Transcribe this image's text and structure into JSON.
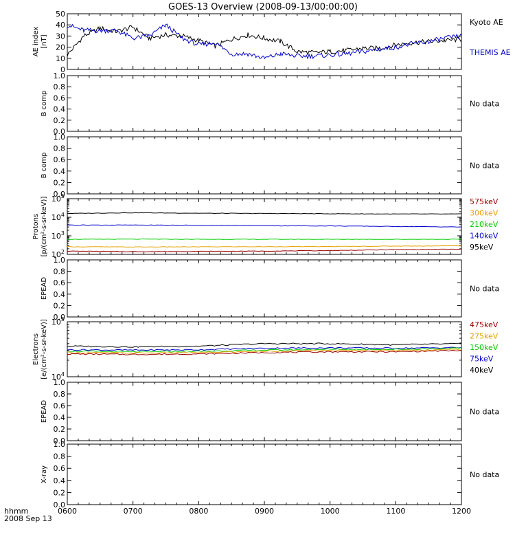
{
  "title": "GOES-13 Overview (2008-09-13/00:00:00)",
  "time_axis": {
    "ticks": [
      "0600",
      "0700",
      "0800",
      "0900",
      "1000",
      "1100",
      "1200"
    ],
    "label_top": "hhmm",
    "label_bottom": "2008 Sep 13"
  },
  "panels": [
    {
      "id": "ae",
      "ylabel": [
        "AE index",
        "[nT]"
      ],
      "yticks": [
        "0",
        "10",
        "20",
        "30",
        "40",
        "50"
      ],
      "legend": [
        {
          "text": "Kyoto AE",
          "color": "#000000"
        },
        {
          "text": "THEMIS AE",
          "color": "#0000cc"
        }
      ]
    },
    {
      "id": "bcomp1",
      "ylabel": [
        "B comp"
      ],
      "yticks": [
        "0.0",
        "0.2",
        "0.4",
        "0.6",
        "0.8",
        "1.0"
      ],
      "status": "No data"
    },
    {
      "id": "bcomp2",
      "ylabel": [
        "B comp"
      ],
      "yticks": [
        "0.0",
        "0.2",
        "0.4",
        "0.6",
        "0.8",
        "1.0"
      ],
      "status": "No data"
    },
    {
      "id": "protons",
      "ylabel": [
        "Protons",
        "[p/(cm²-s-sr-keV)]"
      ],
      "yticks": [
        {
          "base": "10",
          "exp": "2"
        },
        {
          "base": "10",
          "exp": "3"
        },
        {
          "base": "10",
          "exp": "4"
        },
        {
          "base": "10",
          "exp": "5"
        }
      ],
      "legend": [
        {
          "text": "575keV",
          "color": "#990000"
        },
        {
          "text": "300keV",
          "color": "#e6a000"
        },
        {
          "text": "210keV",
          "color": "#00cc00"
        },
        {
          "text": "140keV",
          "color": "#0000cc"
        },
        {
          "text": "95keV",
          "color": "#000000"
        }
      ]
    },
    {
      "id": "epead1",
      "ylabel": [
        "EPEAD"
      ],
      "yticks": [
        "0.0",
        "0.2",
        "0.4",
        "0.6",
        "0.8",
        "1.0"
      ],
      "status": "No data"
    },
    {
      "id": "electrons",
      "ylabel": [
        "Electrons",
        "[e/(cm²-s-sr-keV)]"
      ],
      "yticks": [
        {
          "base": "10",
          "exp": "4"
        },
        {
          "base": "10",
          "exp": "5"
        }
      ],
      "legend": [
        {
          "text": "475keV",
          "color": "#990000"
        },
        {
          "text": "275keV",
          "color": "#e6a000"
        },
        {
          "text": "150keV",
          "color": "#00cc00"
        },
        {
          "text": "75keV",
          "color": "#0000cc"
        },
        {
          "text": "40keV",
          "color": "#000000"
        }
      ]
    },
    {
      "id": "epead2",
      "ylabel": [
        "EPEAD"
      ],
      "yticks": [
        "0.0",
        "0.2",
        "0.4",
        "0.6",
        "0.8",
        "1.0"
      ],
      "status": "No data"
    },
    {
      "id": "xray",
      "ylabel": [
        "X-ray"
      ],
      "yticks": [
        "0.0",
        "0.2",
        "0.4",
        "0.6",
        "0.8",
        "1.0"
      ],
      "status": "No data"
    }
  ],
  "chart_data": [
    {
      "type": "line",
      "panel": "ae",
      "ylabel": "AE index [nT]",
      "ylim": [
        0,
        50
      ],
      "x": [
        "0600",
        "0615",
        "0630",
        "0645",
        "0700",
        "0715",
        "0730",
        "0745",
        "0800",
        "0815",
        "0830",
        "0845",
        "0900",
        "0915",
        "0930",
        "0945",
        "1000",
        "1015",
        "1030",
        "1045",
        "1100",
        "1115",
        "1130",
        "1145",
        "1200"
      ],
      "series": [
        {
          "name": "Kyoto AE",
          "color": "#000000",
          "values": [
            13,
            30,
            37,
            34,
            38,
            28,
            31,
            30,
            26,
            21,
            27,
            31,
            28,
            25,
            16,
            15,
            16,
            17,
            19,
            19,
            22,
            24,
            25,
            26,
            27
          ]
        },
        {
          "name": "THEMIS AE",
          "color": "#0000cc",
          "values": [
            40,
            35,
            35,
            35,
            28,
            30,
            40,
            28,
            22,
            24,
            14,
            14,
            10,
            14,
            12,
            12,
            13,
            14,
            16,
            18,
            20,
            23,
            25,
            28,
            30
          ]
        }
      ]
    },
    {
      "type": "line",
      "panel": "protons",
      "ylabel": "Protons [p/(cm²-s-sr-keV)]",
      "yscale": "log",
      "ylim": [
        100,
        100000
      ],
      "x": [
        "0600",
        "0700",
        "0800",
        "0900",
        "1000",
        "1100",
        "1200"
      ],
      "series": [
        {
          "name": "95keV",
          "color": "#000000",
          "values": [
            16000,
            17500,
            16500,
            16000,
            15500,
            15000,
            15000
          ]
        },
        {
          "name": "140keV",
          "color": "#0000cc",
          "values": [
            3800,
            3800,
            3700,
            3500,
            3400,
            3200,
            3000
          ]
        },
        {
          "name": "210keV",
          "color": "#00cc00",
          "values": [
            650,
            660,
            650,
            650,
            650,
            650,
            650
          ]
        },
        {
          "name": "300keV",
          "color": "#e6a000",
          "values": [
            260,
            250,
            255,
            260,
            265,
            280,
            290
          ]
        },
        {
          "name": "575keV",
          "color": "#990000",
          "values": [
            150,
            140,
            145,
            150,
            160,
            180,
            190
          ]
        }
      ]
    },
    {
      "type": "line",
      "panel": "electrons",
      "ylabel": "Electrons [e/(cm²-s-sr-keV)]",
      "yscale": "log",
      "ylim": [
        10000,
        100000
      ],
      "x": [
        "0600",
        "0700",
        "0800",
        "0900",
        "1000",
        "1100",
        "1200"
      ],
      "series": [
        {
          "name": "40keV",
          "color": "#000000",
          "values": [
            36000,
            35000,
            36000,
            40000,
            40000,
            38000,
            40000
          ]
        },
        {
          "name": "75keV",
          "color": "#0000cc",
          "values": [
            31000,
            30500,
            31000,
            33000,
            33500,
            33000,
            34000
          ]
        },
        {
          "name": "150keV",
          "color": "#00cc00",
          "values": [
            29000,
            28500,
            29000,
            30500,
            31500,
            31500,
            33000
          ]
        },
        {
          "name": "275keV",
          "color": "#e6a000",
          "values": [
            27500,
            27000,
            27500,
            29000,
            30000,
            30000,
            31500
          ]
        },
        {
          "name": "475keV",
          "color": "#990000",
          "values": [
            26000,
            25500,
            26000,
            27500,
            28500,
            28500,
            30000
          ]
        }
      ]
    }
  ]
}
